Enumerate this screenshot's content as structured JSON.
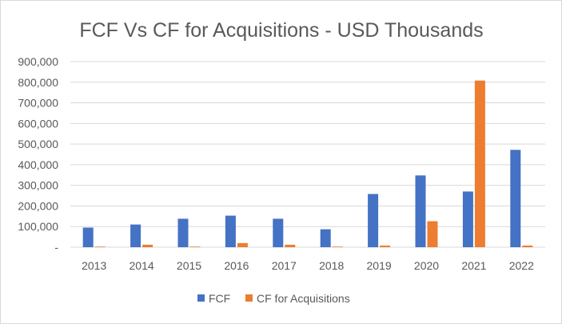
{
  "chart_data": {
    "type": "bar",
    "title": "FCF Vs CF for Acquisitions - USD Thousands",
    "categories": [
      "2013",
      "2014",
      "2015",
      "2016",
      "2017",
      "2018",
      "2019",
      "2020",
      "2021",
      "2022"
    ],
    "series": [
      {
        "name": "FCF",
        "color": "#4472c4",
        "values": [
          95000,
          110000,
          138000,
          153000,
          138000,
          87000,
          258000,
          348000,
          270000,
          472000
        ]
      },
      {
        "name": "CF for Acquisitions",
        "color": "#ed7d31",
        "values": [
          3000,
          12000,
          3000,
          20000,
          12000,
          3000,
          8000,
          126000,
          808000,
          8000
        ]
      }
    ],
    "ylim": [
      0,
      900000
    ],
    "yticks": [
      0,
      100000,
      200000,
      300000,
      400000,
      500000,
      600000,
      700000,
      800000,
      900000
    ],
    "ytick_labels": [
      "-",
      "100,000",
      "200,000",
      "300,000",
      "400,000",
      "500,000",
      "600,000",
      "700,000",
      "800,000",
      "900,000"
    ],
    "grid": true,
    "legend_position": "bottom"
  }
}
